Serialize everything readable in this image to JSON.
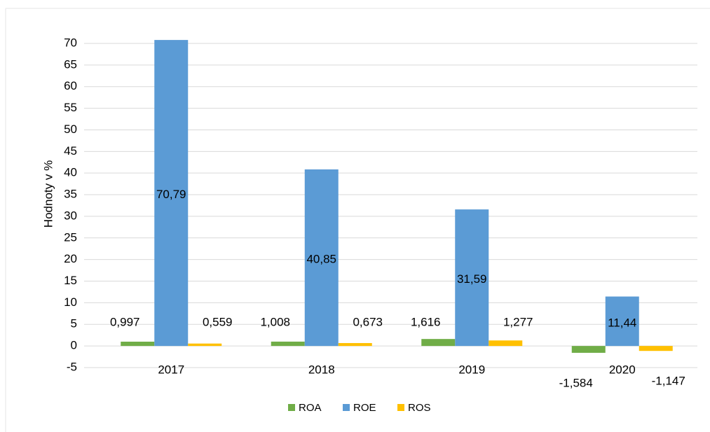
{
  "chart_data": {
    "type": "bar",
    "y_label": "Hodnoty v %",
    "categories": [
      "2017",
      "2018",
      "2019",
      "2020"
    ],
    "series": [
      {
        "name": "ROA",
        "color": "#70ad47",
        "values": [
          0.997,
          1.008,
          1.616,
          -1.584
        ],
        "value_labels": [
          "0,997",
          "1,008",
          "1,616",
          "-1,584"
        ]
      },
      {
        "name": "ROE",
        "color": "#5b9bd5",
        "values": [
          70.79,
          40.85,
          31.59,
          11.44
        ],
        "value_labels": [
          "70,79",
          "40,85",
          "31,59",
          "11,44"
        ]
      },
      {
        "name": "ROS",
        "color": "#ffc000",
        "values": [
          0.559,
          0.673,
          1.277,
          -1.147
        ],
        "value_labels": [
          "0,559",
          "0,673",
          "1,277",
          "-1,147"
        ]
      }
    ],
    "ylim": [
      -5,
      71
    ],
    "yticks": [
      -5,
      0,
      5,
      10,
      15,
      20,
      25,
      30,
      35,
      40,
      45,
      50,
      55,
      60,
      65,
      70
    ],
    "grid": true,
    "legend": "bottom"
  }
}
